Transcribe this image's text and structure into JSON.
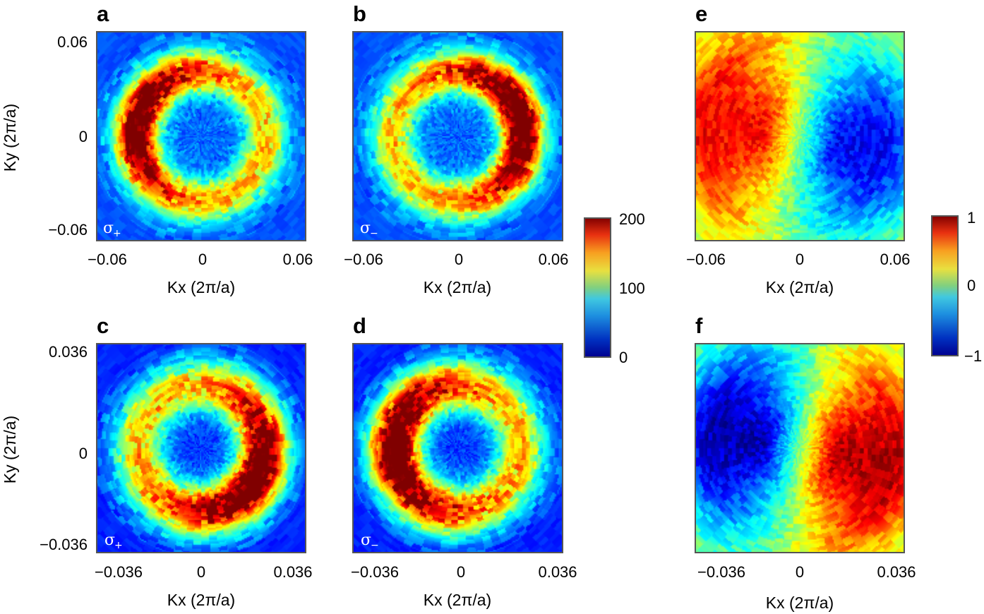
{
  "chart_data": [
    {
      "id": "a",
      "type": "heatmap",
      "letter": "a",
      "title": "",
      "xlabel": "Kx (2π/a)",
      "ylabel": "Ky (2π/a)",
      "xticks": [
        "−0.06",
        "0",
        "0.06"
      ],
      "yticks": [
        "0.06",
        "0",
        "−0.06"
      ],
      "xlim": [
        -0.06,
        0.06
      ],
      "ylim": [
        -0.06,
        0.06
      ],
      "polarization": {
        "symbol": "σ",
        "sub": "+"
      },
      "pattern": {
        "kind": "ring",
        "ring_radius": 0.62,
        "ring_width": 0.2,
        "peak_angle_deg": 165,
        "lobe_width_deg": 70,
        "peak_value": 190,
        "base_value": 45,
        "ring_value": 90
      },
      "colorbar_ref": "intensity"
    },
    {
      "id": "b",
      "type": "heatmap",
      "letter": "b",
      "title": "",
      "xlabel": "Kx (2π/a)",
      "ylabel": "",
      "xticks": [
        "−0.06",
        "0",
        "0.06"
      ],
      "yticks": [],
      "xlim": [
        -0.06,
        0.06
      ],
      "ylim": [
        -0.06,
        0.06
      ],
      "polarization": {
        "symbol": "σ",
        "sub": "−"
      },
      "pattern": {
        "kind": "ring",
        "ring_radius": 0.62,
        "ring_width": 0.2,
        "peak_angle_deg": 15,
        "lobe_width_deg": 75,
        "peak_value": 195,
        "base_value": 45,
        "ring_value": 90
      },
      "colorbar_ref": "intensity"
    },
    {
      "id": "c",
      "type": "heatmap",
      "letter": "c",
      "title": "",
      "xlabel": "Kx (2π/a)",
      "ylabel": "Ky (2π/a)",
      "xticks": [
        "−0.036",
        "0",
        "0.036"
      ],
      "yticks": [
        "0.036",
        "0",
        "−0.036"
      ],
      "xlim": [
        -0.036,
        0.036
      ],
      "ylim": [
        -0.036,
        0.036
      ],
      "polarization": {
        "symbol": "σ",
        "sub": "+"
      },
      "pattern": {
        "kind": "ring",
        "ring_radius": 0.6,
        "ring_width": 0.24,
        "peak_angle_deg": -30,
        "lobe_width_deg": 80,
        "peak_value": 200,
        "base_value": 35,
        "ring_value": 100
      },
      "colorbar_ref": "intensity"
    },
    {
      "id": "d",
      "type": "heatmap",
      "letter": "d",
      "title": "",
      "xlabel": "Kx (2π/a)",
      "ylabel": "",
      "xticks": [
        "−0.036",
        "0",
        "0.036"
      ],
      "yticks": [],
      "xlim": [
        -0.036,
        0.036
      ],
      "ylim": [
        -0.036,
        0.036
      ],
      "polarization": {
        "symbol": "σ",
        "sub": "−"
      },
      "pattern": {
        "kind": "ring",
        "ring_radius": 0.6,
        "ring_width": 0.24,
        "peak_angle_deg": 180,
        "lobe_width_deg": 85,
        "peak_value": 200,
        "base_value": 35,
        "ring_value": 100
      },
      "colorbar_ref": "intensity"
    },
    {
      "id": "e",
      "type": "heatmap",
      "letter": "e",
      "title": "",
      "xlabel": "Kx (2π/a)",
      "ylabel": "",
      "xticks": [
        "−0.06",
        "0",
        "0.06"
      ],
      "yticks": [],
      "xlim": [
        -0.06,
        0.06
      ],
      "ylim": [
        -0.06,
        0.06
      ],
      "polarization": null,
      "pattern": {
        "kind": "dichroism",
        "positive_angle_deg": 170,
        "amplitude": 0.75,
        "offset": 0.25
      },
      "colorbar_ref": "dichroism"
    },
    {
      "id": "f",
      "type": "heatmap",
      "letter": "f",
      "title": "",
      "xlabel": "Kx (2π/a)",
      "ylabel": "",
      "xticks": [
        "−0.036",
        "0",
        "0.036"
      ],
      "yticks": [],
      "xlim": [
        -0.036,
        0.036
      ],
      "ylim": [
        -0.036,
        0.036
      ],
      "polarization": null,
      "pattern": {
        "kind": "dichroism",
        "positive_angle_deg": -10,
        "amplitude": 0.9,
        "offset": 0.15
      },
      "colorbar_ref": "dichroism"
    }
  ],
  "colorbars": {
    "intensity": {
      "min": 0,
      "max": 200,
      "ticks": [
        "200",
        "100",
        "0"
      ],
      "colormap": "jet"
    },
    "dichroism": {
      "min": -1,
      "max": 1,
      "ticks": [
        "1",
        "0",
        "−1"
      ],
      "colormap": "jet"
    }
  }
}
